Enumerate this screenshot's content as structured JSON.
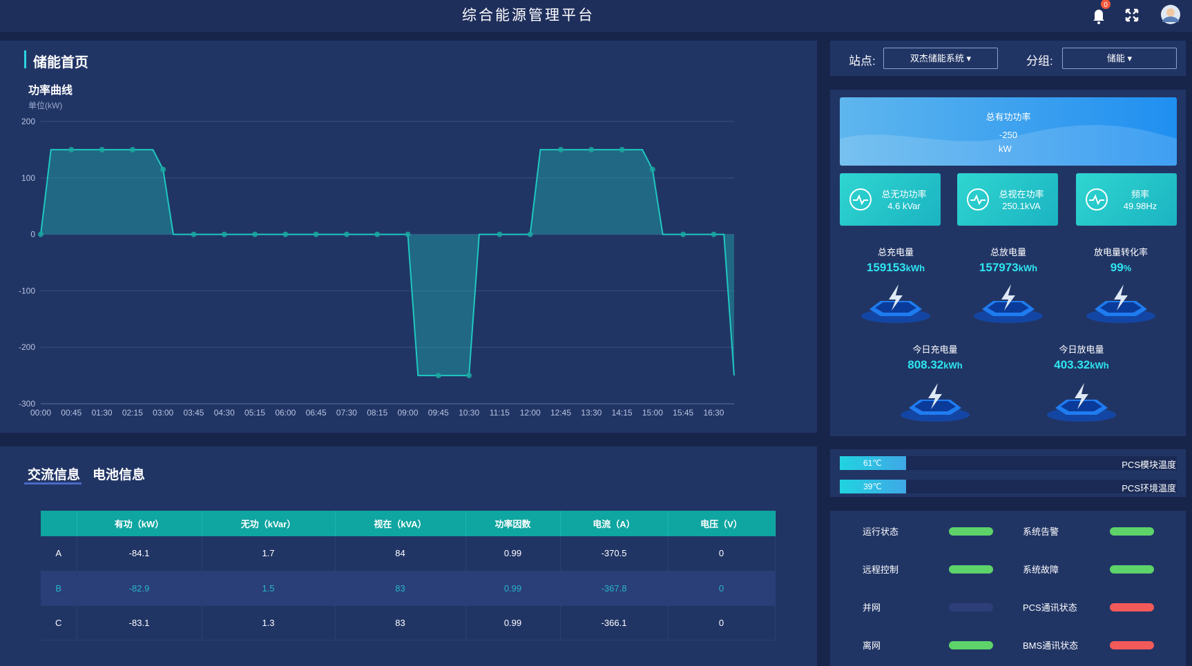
{
  "header": {
    "title": "综合能源管理平台",
    "badge": "0"
  },
  "panel": {
    "title": "储能首页"
  },
  "chart_data": {
    "type": "line",
    "title": "功率曲线",
    "unit": "单位(kW)",
    "color": "#1fc8c0",
    "grid": true,
    "categories": [
      "00:00",
      null,
      null,
      "00:45",
      null,
      null,
      "01:30",
      null,
      null,
      "02:15",
      null,
      null,
      "03:00",
      null,
      null,
      "03:45",
      null,
      null,
      "04:30",
      null,
      null,
      "05:15",
      null,
      null,
      "06:00",
      null,
      null,
      "06:45",
      null,
      null,
      "07:30",
      null,
      null,
      "08:15",
      null,
      null,
      "09:00",
      null,
      null,
      "09:45",
      null,
      null,
      "10:30",
      null,
      null,
      "11:15",
      null,
      null,
      "12:00",
      null,
      null,
      "12:45",
      null,
      null,
      "13:30",
      null,
      null,
      "14:15",
      null,
      null,
      "15:00",
      null,
      null,
      "15:45",
      null,
      null,
      "16:30",
      null,
      null
    ],
    "values": [
      0,
      150,
      150,
      150,
      150,
      150,
      150,
      150,
      150,
      150,
      150,
      150,
      115,
      0,
      0,
      0,
      0,
      0,
      0,
      0,
      0,
      0,
      0,
      0,
      0,
      0,
      0,
      0,
      0,
      0,
      0,
      0,
      0,
      0,
      0,
      0,
      0,
      -250,
      -250,
      -250,
      -250,
      -250,
      -250,
      0,
      0,
      0,
      0,
      0,
      0,
      150,
      150,
      150,
      150,
      150,
      150,
      150,
      150,
      150,
      150,
      150,
      115,
      0,
      0,
      0,
      0,
      0,
      0,
      0,
      -250
    ],
    "ylim": [
      -300,
      200
    ],
    "yticks": [
      -300,
      -200,
      -100,
      0,
      100,
      200
    ]
  },
  "tabs": [
    "交流信息",
    "电池信息"
  ],
  "table": {
    "columns": [
      "有功（kW）",
      "无功（kVar）",
      "视在（kVA）",
      "功率因数",
      "电流（A）",
      "电压（V）"
    ],
    "rows": [
      {
        "label": "A",
        "cells": [
          -84.1,
          1.7,
          84,
          0.99,
          -370.5,
          0
        ]
      },
      {
        "label": "B",
        "cells": [
          -82.9,
          1.5,
          83,
          0.99,
          -367.8,
          0
        ]
      },
      {
        "label": "C",
        "cells": [
          -83.1,
          1.3,
          83,
          0.99,
          -366.1,
          0
        ]
      }
    ]
  },
  "station": {
    "label": "站点:",
    "value": "双杰储能系统",
    "group_label": "分组:",
    "group_value": "储能"
  },
  "total_power": {
    "label": "总有功功率",
    "value": "-250",
    "unit": "kW"
  },
  "cards": [
    {
      "label": "总无功功率",
      "value": "4.6 kVar"
    },
    {
      "label": "总视在功率",
      "value": "250.1kVA"
    },
    {
      "label": "频率",
      "value": "49.98Hz"
    }
  ],
  "stats": [
    {
      "label": "总充电量",
      "value": "159153",
      "unit": "kWh"
    },
    {
      "label": "总放电量",
      "value": "157973",
      "unit": "kWh"
    },
    {
      "label": "放电量转化率",
      "value": "99",
      "unit": "%"
    },
    {
      "label": "今日充电量",
      "value": "808.32",
      "unit": "kWh"
    },
    {
      "label": "今日放电量",
      "value": "403.32",
      "unit": "kWh"
    }
  ],
  "temps": [
    {
      "value": "61℃",
      "label": "PCS模块温度"
    },
    {
      "value": "39℃",
      "label": "PCS环境温度"
    }
  ],
  "status": [
    {
      "label": "运行状态",
      "color": "#5dd36a"
    },
    {
      "label": "系统告警",
      "color": "#5dd36a"
    },
    {
      "label": "远程控制",
      "color": "#5dd36a"
    },
    {
      "label": "系统故障",
      "color": "#5dd36a"
    },
    {
      "label": "并网",
      "color": "#2e3f78"
    },
    {
      "label": "PCS通讯状态",
      "color": "#f25a5a"
    },
    {
      "label": "离网",
      "color": "#5dd36a"
    },
    {
      "label": "BMS通讯状态",
      "color": "#f25a5a"
    }
  ]
}
